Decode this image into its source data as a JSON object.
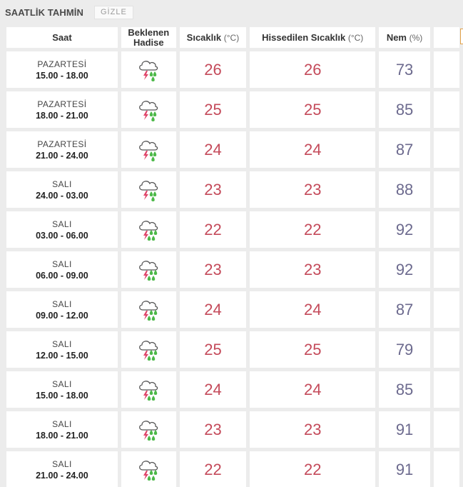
{
  "header": {
    "title": "SAATLİK TAHMİN",
    "hide_label": "GİZLE"
  },
  "columns": {
    "saat": "Saat",
    "hadise_line1": "Beklenen",
    "hadise_line2": "Hadise",
    "sicaklik": "Sıcaklık",
    "sicaklik_unit": "(°C)",
    "hissedilen": "Hissedilen Sıcaklık",
    "hissedilen_unit": "(°C)",
    "nem": "Nem",
    "nem_unit": "(%)"
  },
  "rows": [
    {
      "day": "PAZARTESİ",
      "time": "15.00 - 18.00",
      "icon": "thunderstorm-rain-icon",
      "temp": "26",
      "feels": "26",
      "humidity": "73"
    },
    {
      "day": "PAZARTESİ",
      "time": "18.00 - 21.00",
      "icon": "thunderstorm-rain-icon",
      "temp": "25",
      "feels": "25",
      "humidity": "85"
    },
    {
      "day": "PAZARTESİ",
      "time": "21.00 - 24.00",
      "icon": "thunderstorm-rain-icon",
      "temp": "24",
      "feels": "24",
      "humidity": "87"
    },
    {
      "day": "SALI",
      "time": "24.00 - 03.00",
      "icon": "thunderstorm-rain-icon",
      "temp": "23",
      "feels": "23",
      "humidity": "88"
    },
    {
      "day": "SALI",
      "time": "03.00 - 06.00",
      "icon": "thunderstorm-heavy-rain-icon",
      "temp": "22",
      "feels": "22",
      "humidity": "92"
    },
    {
      "day": "SALI",
      "time": "06.00 - 09.00",
      "icon": "thunderstorm-heavy-rain-icon",
      "temp": "23",
      "feels": "23",
      "humidity": "92"
    },
    {
      "day": "SALI",
      "time": "09.00 - 12.00",
      "icon": "thunderstorm-heavy-rain-icon",
      "temp": "24",
      "feels": "24",
      "humidity": "87"
    },
    {
      "day": "SALI",
      "time": "12.00 - 15.00",
      "icon": "thunderstorm-heavy-rain-icon",
      "temp": "25",
      "feels": "25",
      "humidity": "79"
    },
    {
      "day": "SALI",
      "time": "15.00 - 18.00",
      "icon": "thunderstorm-heavy-rain-icon",
      "temp": "24",
      "feels": "24",
      "humidity": "85"
    },
    {
      "day": "SALI",
      "time": "18.00 - 21.00",
      "icon": "thunderstorm-heavy-rain-icon",
      "temp": "23",
      "feels": "23",
      "humidity": "91"
    },
    {
      "day": "SALI",
      "time": "21.00 - 24.00",
      "icon": "thunderstorm-heavy-rain-icon",
      "temp": "22",
      "feels": "22",
      "humidity": "91"
    }
  ],
  "colors": {
    "temperature": "#c44a5a",
    "humidity": "#6c6a8e",
    "lightning": "#e0456a",
    "rain": "#4cb848"
  }
}
